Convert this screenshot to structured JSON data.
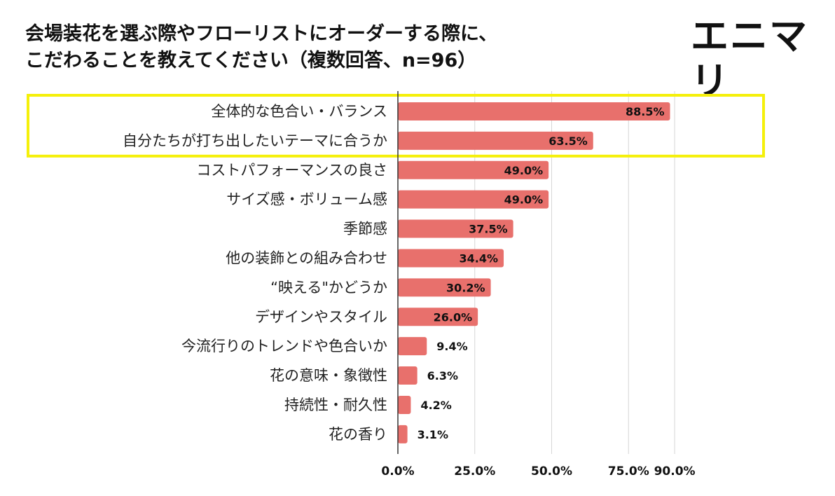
{
  "header": {
    "title_line1": "会場装花を選ぶ際やフローリストにオーダーする際に、",
    "title_line2": "こだわることを教えてください（複数回答、n=96）"
  },
  "brand": {
    "logo_text": "エニマリ"
  },
  "colors": {
    "bar": "#e8706c",
    "highlight": "#f5f00a",
    "grid": "#d6d6d6",
    "axis": "#333333"
  },
  "chart_data": {
    "type": "bar",
    "orientation": "horizontal",
    "title": "会場装花を選ぶ際やフローリストにオーダーする際に、こだわることを教えてください（複数回答、n=96）",
    "xlabel": "",
    "ylabel": "",
    "xlim": [
      0,
      100
    ],
    "value_unit": "%",
    "categories": [
      "全体的な色合い・バランス",
      "自分たちが打ち出したいテーマに合うか",
      "コストパフォーマンスの良さ",
      "サイズ感・ボリューム感",
      "季節感",
      "他の装飾との組み合わせ",
      "“映える\"かどうか",
      "デザインやスタイル",
      "今流行りのトレンドや色合いか",
      "花の意味・象徴性",
      "持続性・耐久性",
      "花の香り"
    ],
    "values": [
      88.5,
      63.5,
      49.0,
      49.0,
      37.5,
      34.4,
      30.2,
      26.0,
      9.4,
      6.3,
      4.2,
      3.1
    ],
    "value_labels": [
      "88.5%",
      "63.5%",
      "49.0%",
      "49.0%",
      "37.5%",
      "34.4%",
      "30.2%",
      "26.0%",
      "9.4%",
      "6.3%",
      "4.2%",
      "3.1%"
    ],
    "x_ticks": [
      0,
      25,
      50,
      75,
      90
    ],
    "x_tick_labels": [
      "0.0%",
      "25.0%",
      "50.0%",
      "75.0%",
      "90.0%"
    ],
    "highlighted_categories": [
      0,
      1
    ],
    "grid": true
  }
}
